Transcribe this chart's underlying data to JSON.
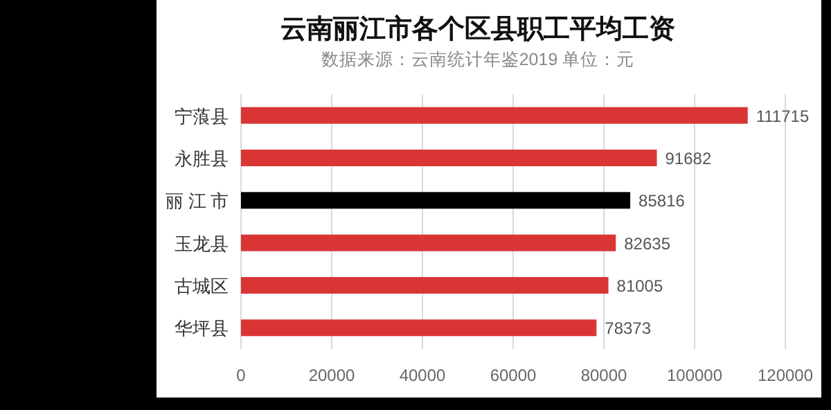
{
  "chart_data": {
    "type": "bar",
    "orientation": "horizontal",
    "title": "云南丽江市各个区县职工平均工资",
    "subtitle": "数据来源：云南统计年鉴2019  单位：元",
    "categories": [
      "宁蒗县",
      "永胜县",
      "丽 江 市",
      "玉龙县",
      "古城区",
      "华坪县"
    ],
    "values": [
      111715,
      91682,
      85816,
      82635,
      81005,
      78373
    ],
    "colors": [
      "#d93535",
      "#d93535",
      "#000000",
      "#d93535",
      "#d93535",
      "#d93535"
    ],
    "xlim": [
      0,
      120000
    ],
    "xticks": [
      0,
      20000,
      40000,
      60000,
      80000,
      100000,
      120000
    ],
    "grid": "x",
    "data_labels": true
  }
}
